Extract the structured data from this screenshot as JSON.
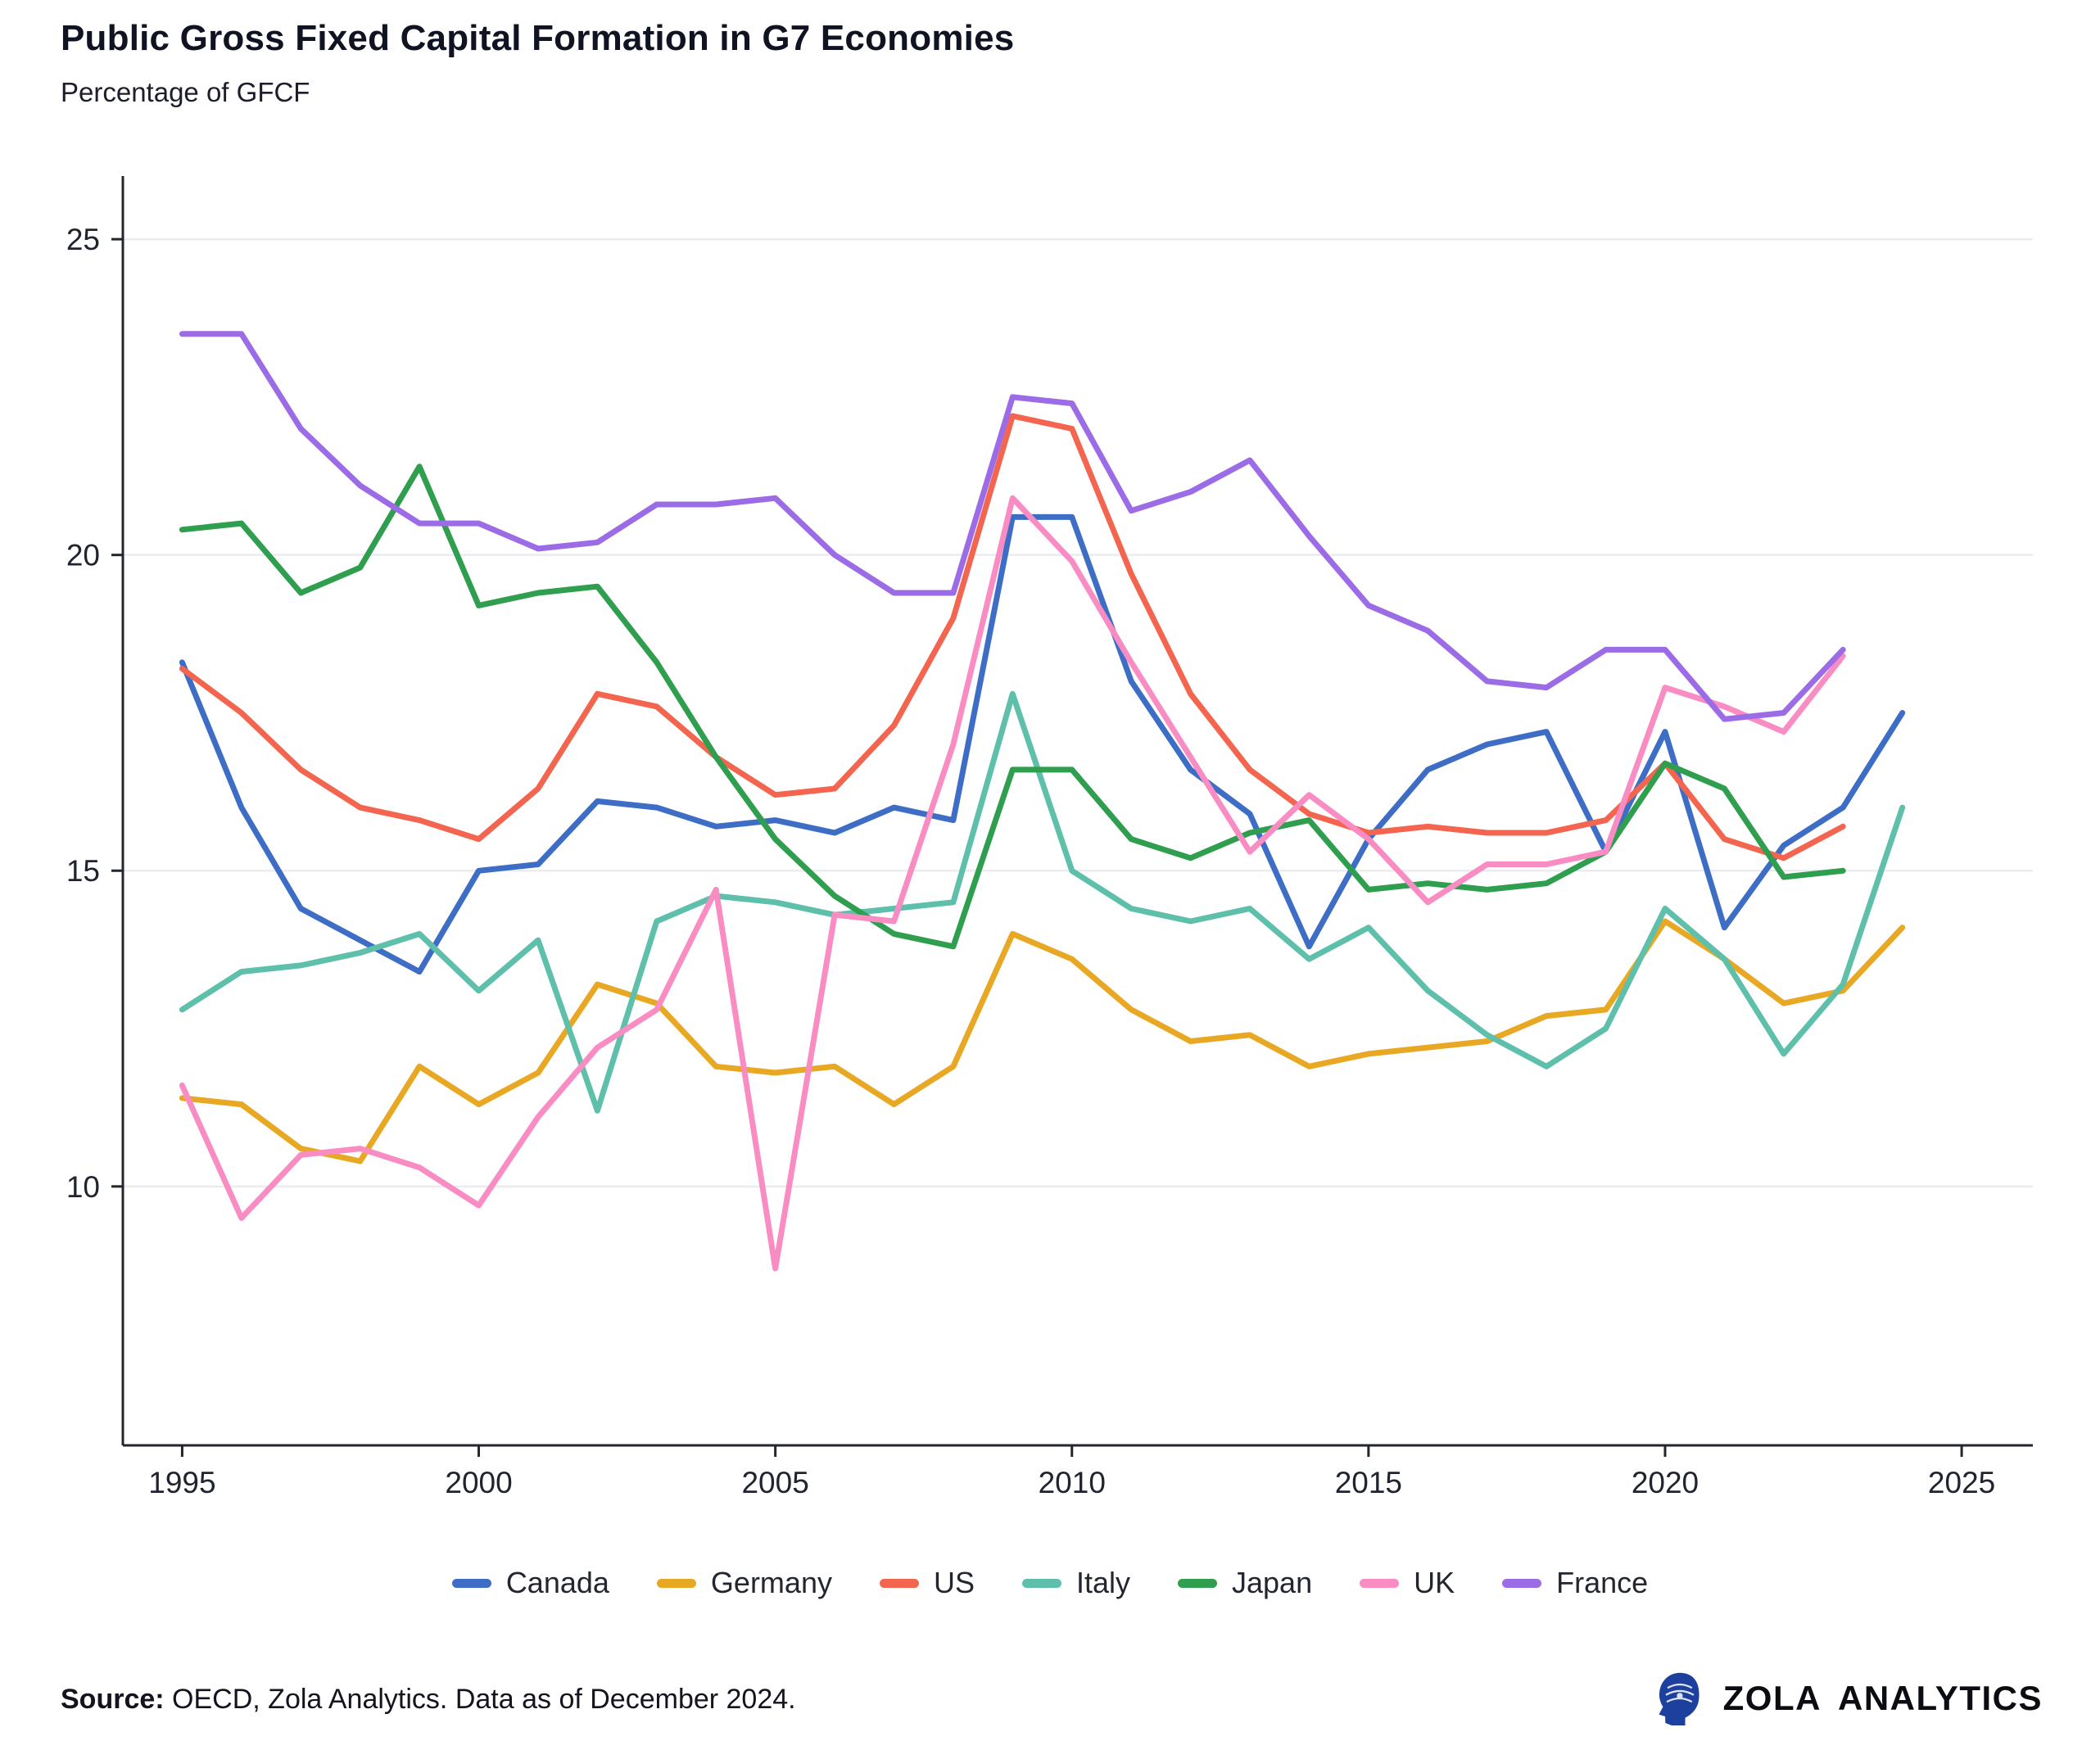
{
  "header": {
    "title": "Public Gross Fixed Capital Formation in G7 Economies",
    "subtitle": "Percentage of GFCF"
  },
  "footer": {
    "source_label": "Source:",
    "source_text": "OECD, Zola Analytics. Data as of December 2024.",
    "brand": "ZOLA ANALYTICS"
  },
  "chart_data": {
    "type": "line",
    "title": "Public Gross Fixed Capital Formation in G7 Economies",
    "subtitle": "Percentage of GFCF",
    "xlabel": "",
    "ylabel": "Percentage of GFCF",
    "x_ticks": [
      1995,
      2000,
      2005,
      2010,
      2015,
      2020,
      2025
    ],
    "y_ticks": [
      10,
      15,
      20,
      25
    ],
    "xlim": [
      1994.0,
      2026.2
    ],
    "ylim": [
      5.9,
      26.0
    ],
    "grid": "horizontal",
    "legend_position": "bottom",
    "start_year": 1995,
    "series": [
      {
        "name": "Canada",
        "color": "#3e6dc6",
        "values": [
          18.3,
          16.0,
          14.4,
          13.9,
          13.4,
          15.0,
          15.1,
          16.1,
          16.0,
          15.7,
          15.8,
          15.6,
          16.0,
          15.8,
          20.6,
          20.6,
          18.0,
          16.6,
          15.9,
          13.8,
          15.5,
          16.6,
          17.0,
          17.2,
          15.3,
          17.2,
          14.1,
          15.4,
          16.0,
          17.5
        ]
      },
      {
        "name": "Germany",
        "color": "#e8a823",
        "values": [
          11.4,
          11.3,
          10.6,
          10.4,
          11.9,
          11.3,
          11.8,
          13.2,
          12.9,
          11.9,
          11.8,
          11.9,
          11.3,
          11.9,
          14.0,
          13.6,
          12.8,
          12.3,
          12.4,
          11.9,
          12.1,
          12.2,
          12.3,
          12.7,
          12.8,
          14.2,
          13.6,
          12.9,
          13.1,
          14.1
        ]
      },
      {
        "name": "US",
        "color": "#f4654f",
        "values": [
          18.2,
          17.5,
          16.6,
          16.0,
          15.8,
          15.5,
          16.3,
          17.8,
          17.6,
          16.8,
          16.2,
          16.3,
          17.3,
          19.0,
          22.2,
          22.0,
          19.7,
          17.8,
          16.6,
          15.9,
          15.6,
          15.7,
          15.6,
          15.6,
          15.8,
          16.7,
          15.5,
          15.2,
          15.7
        ]
      },
      {
        "name": "Italy",
        "color": "#5ec0aa",
        "values": [
          12.8,
          13.4,
          13.5,
          13.7,
          14.0,
          13.1,
          13.9,
          11.2,
          14.2,
          14.6,
          14.5,
          14.3,
          14.4,
          14.5,
          17.8,
          15.0,
          14.4,
          14.2,
          14.4,
          13.6,
          14.1,
          13.1,
          12.4,
          11.9,
          12.5,
          14.4,
          13.6,
          12.1,
          13.2,
          16.0
        ]
      },
      {
        "name": "Japan",
        "color": "#2f9e4f",
        "values": [
          20.4,
          20.5,
          19.4,
          19.8,
          21.4,
          19.2,
          19.4,
          19.5,
          18.3,
          16.8,
          15.5,
          14.6,
          14.0,
          13.8,
          16.6,
          16.6,
          15.5,
          15.2,
          15.6,
          15.8,
          14.7,
          14.8,
          14.7,
          14.8,
          15.3,
          16.7,
          16.3,
          14.9,
          15.0
        ]
      },
      {
        "name": "UK",
        "color": "#f98cc2",
        "values": [
          11.6,
          9.5,
          10.5,
          10.6,
          10.3,
          9.7,
          11.1,
          12.2,
          12.8,
          14.7,
          8.7,
          14.3,
          14.2,
          17.0,
          20.9,
          19.9,
          18.3,
          16.8,
          15.3,
          16.2,
          15.5,
          14.5,
          15.1,
          15.1,
          15.3,
          17.9,
          17.6,
          17.2,
          18.4
        ]
      },
      {
        "name": "France",
        "color": "#9c6ce6",
        "values": [
          23.5,
          23.5,
          22.0,
          21.1,
          20.5,
          20.5,
          20.1,
          20.2,
          20.8,
          20.8,
          20.9,
          20.0,
          19.4,
          19.4,
          22.5,
          22.4,
          20.7,
          21.0,
          21.5,
          20.3,
          19.2,
          18.8,
          18.0,
          17.9,
          18.5,
          18.5,
          17.4,
          17.5,
          18.5
        ]
      }
    ]
  }
}
